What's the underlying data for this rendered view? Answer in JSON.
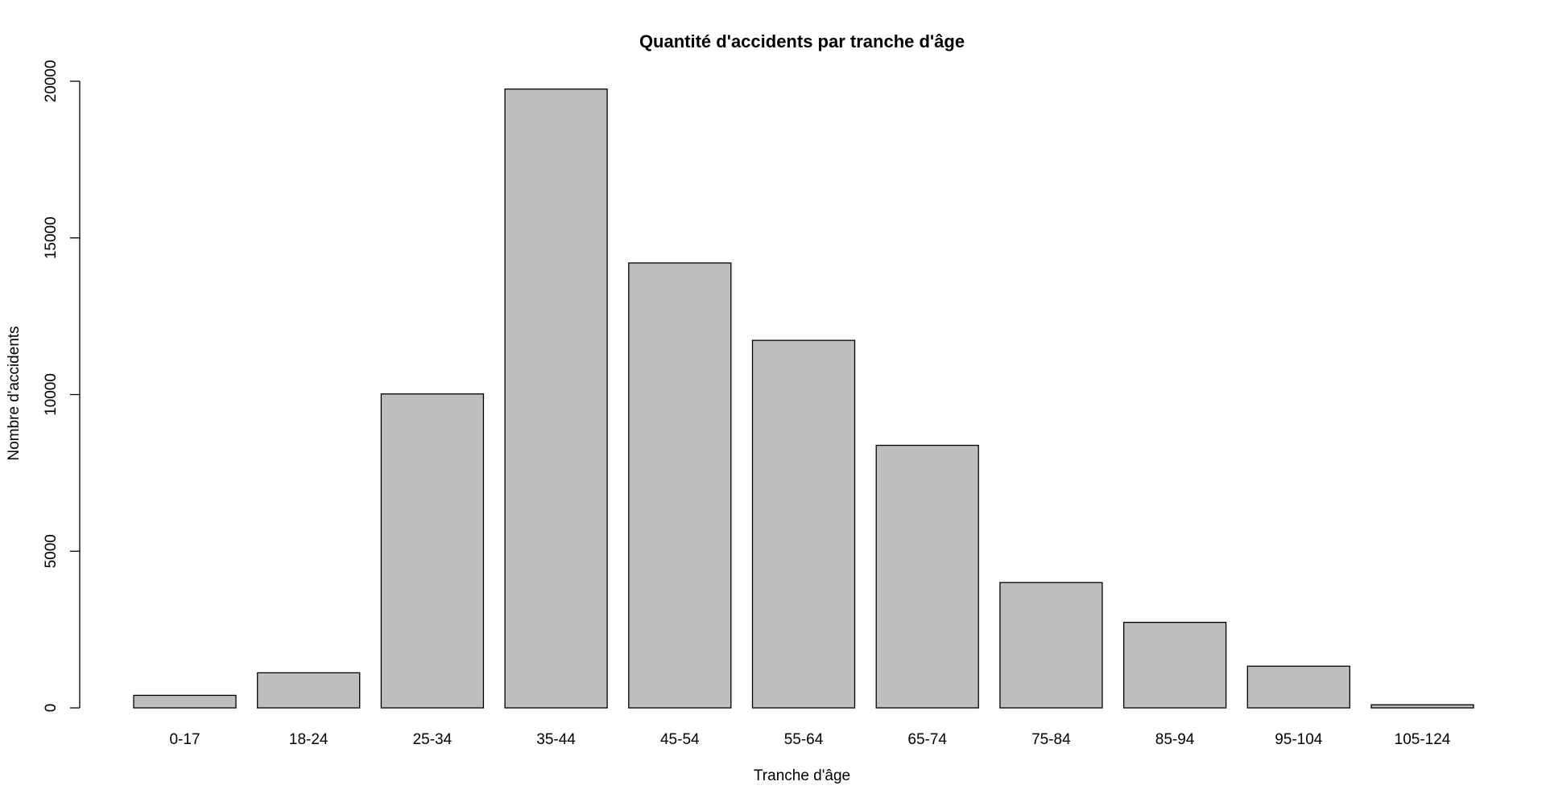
{
  "chart_data": {
    "type": "bar",
    "title": "Quantité d'accidents par tranche d'âge",
    "xlabel": "Tranche d'âge",
    "ylabel": "Nombre d'accidents",
    "categories": [
      "0-17",
      "18-24",
      "25-34",
      "35-44",
      "45-54",
      "55-64",
      "65-74",
      "75-84",
      "85-94",
      "95-104",
      "105-124"
    ],
    "values": [
      400,
      1120,
      10020,
      19750,
      14200,
      11730,
      8380,
      4000,
      2730,
      1330,
      100
    ],
    "ylim": [
      0,
      20000
    ],
    "yticks": [
      "0",
      "5000",
      "10000",
      "15000",
      "20000"
    ],
    "grid": false,
    "legend": "none",
    "bar_color": "#bebebe",
    "bar_border_color": "#000000"
  }
}
